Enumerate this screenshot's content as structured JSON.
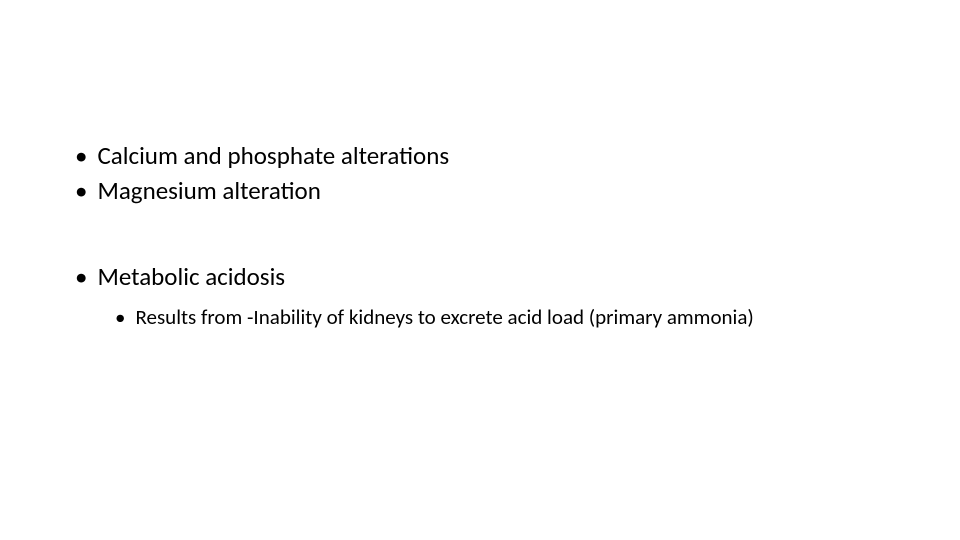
{
  "slide": {
    "bullets": [
      {
        "level": 1,
        "text": "Calcium and phosphate alterations"
      },
      {
        "level": 1,
        "text": "Magnesium alteration"
      },
      {
        "level": 1,
        "text": "Metabolic acidosis"
      },
      {
        "level": 2,
        "text": "Results from -Inability of kidneys to excrete acid load (primary ammonia)"
      }
    ],
    "styling": {
      "background_color": "#ffffff",
      "text_color": "#000000",
      "font_family": "Calibri",
      "level1_fontsize": 25,
      "level2_fontsize": 21,
      "bullet_char": "•"
    }
  }
}
